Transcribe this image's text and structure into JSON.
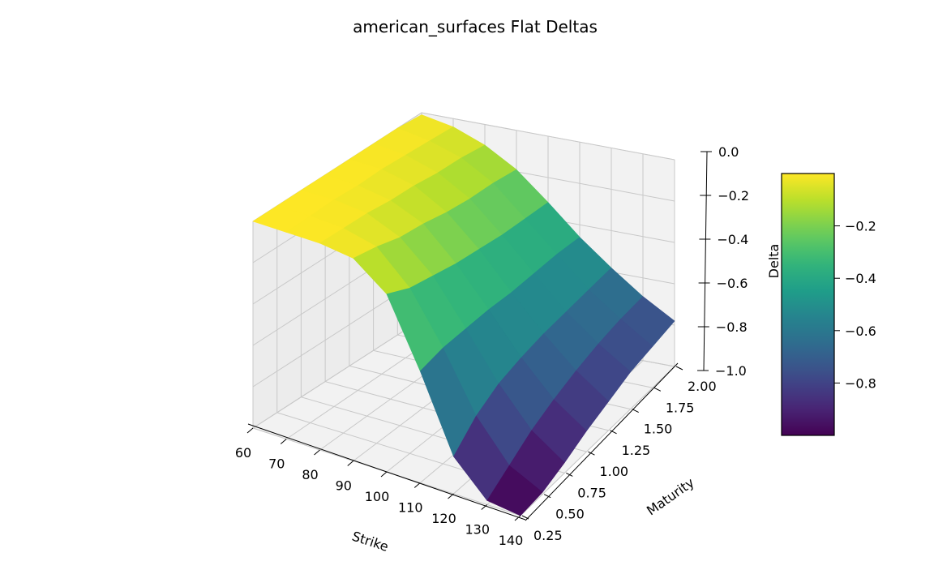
{
  "chart_data": {
    "type": "surface3d",
    "title": "american_surfaces Flat Deltas",
    "xlabel": "Strike",
    "ylabel": "Maturity",
    "zlabel": "Delta",
    "colormap": "viridis",
    "xlim": [
      60,
      140
    ],
    "ylim": [
      0.25,
      2.0
    ],
    "zlim": [
      -1.0,
      0.0
    ],
    "x_ticks": [
      "60",
      "70",
      "80",
      "90",
      "100",
      "110",
      "120",
      "130",
      "140"
    ],
    "y_ticks": [
      "0.25",
      "0.50",
      "0.75",
      "1.00",
      "1.25",
      "1.50",
      "1.75",
      "2.00"
    ],
    "z_ticks": [
      "0.0",
      "−0.2",
      "−0.4",
      "−0.6",
      "−0.8",
      "−1.0"
    ],
    "colorbar_ticks": [
      "−0.2",
      "−0.4",
      "−0.6",
      "−0.8"
    ],
    "strikes": [
      60,
      70,
      80,
      90,
      100,
      110,
      120,
      130,
      140
    ],
    "maturities": [
      0.25,
      0.5,
      0.75,
      1.0,
      1.25,
      1.5,
      1.75,
      2.0
    ],
    "delta": [
      [
        -0.0,
        -0.0,
        -0.0,
        -0.0,
        -0.0,
        -0.0,
        -0.0,
        -0.01
      ],
      [
        -0.0,
        -0.0,
        -0.0,
        -0.01,
        -0.01,
        -0.02,
        -0.03,
        -0.04
      ],
      [
        -0.0,
        -0.01,
        -0.02,
        -0.04,
        -0.05,
        -0.07,
        -0.08,
        -0.1
      ],
      [
        -0.02,
        -0.05,
        -0.09,
        -0.11,
        -0.14,
        -0.16,
        -0.17,
        -0.19
      ],
      [
        -0.14,
        -0.2,
        -0.23,
        -0.26,
        -0.28,
        -0.3,
        -0.31,
        -0.32
      ],
      [
        -0.46,
        -0.44,
        -0.44,
        -0.44,
        -0.45,
        -0.45,
        -0.45,
        -0.46
      ],
      [
        -0.82,
        -0.72,
        -0.66,
        -0.63,
        -0.61,
        -0.6,
        -0.59,
        -0.58
      ],
      [
        -0.98,
        -0.91,
        -0.84,
        -0.79,
        -0.75,
        -0.72,
        -0.7,
        -0.69
      ],
      [
        -1.0,
        -0.99,
        -0.95,
        -0.9,
        -0.86,
        -0.82,
        -0.8,
        -0.78
      ]
    ]
  }
}
